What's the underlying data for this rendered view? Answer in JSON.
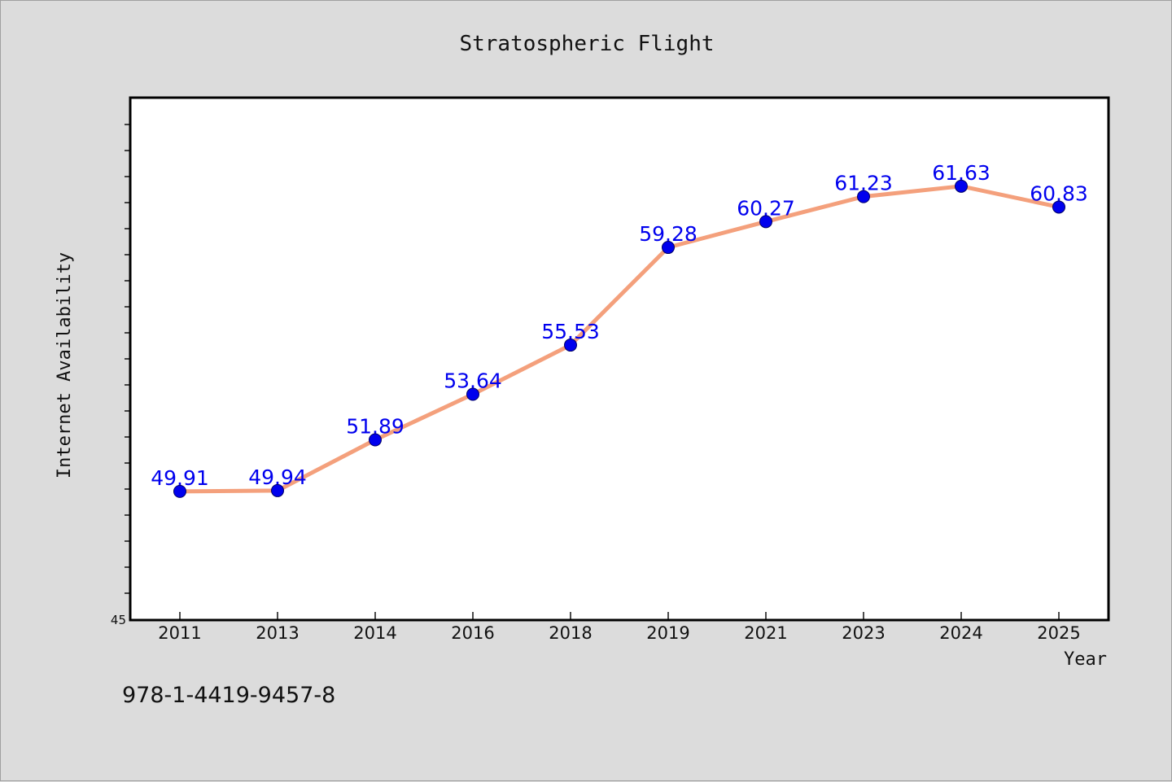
{
  "chart_data": {
    "type": "line",
    "title": "Stratospheric Flight",
    "xlabel": "Year",
    "ylabel": "Internet Availability",
    "categories": [
      "2011",
      "2013",
      "2014",
      "2016",
      "2018",
      "2019",
      "2021",
      "2023",
      "2024",
      "2025"
    ],
    "series": [
      {
        "values": [
          49.91,
          49.94,
          51.89,
          53.64,
          55.53,
          59.28,
          60.27,
          61.23,
          61.63,
          60.83
        ]
      }
    ],
    "data_labels": [
      "49.91",
      "49.94",
      "51.89",
      "53.64",
      "55.53",
      "59.28",
      "60.27",
      "61.23",
      "61.63",
      "60.83"
    ],
    "ylim": [
      45,
      65
    ],
    "y_tick_labels": [
      "45"
    ],
    "y_minor_tick_step": 1,
    "grid": false,
    "line_color": "#f4a07c",
    "marker_color": "#0000ee",
    "label_color": "#0000ee",
    "plot_background": "#ffffff",
    "figure_background": "#dcdcdc"
  },
  "footer": {
    "isbn": "978-1-4419-9457-8"
  }
}
